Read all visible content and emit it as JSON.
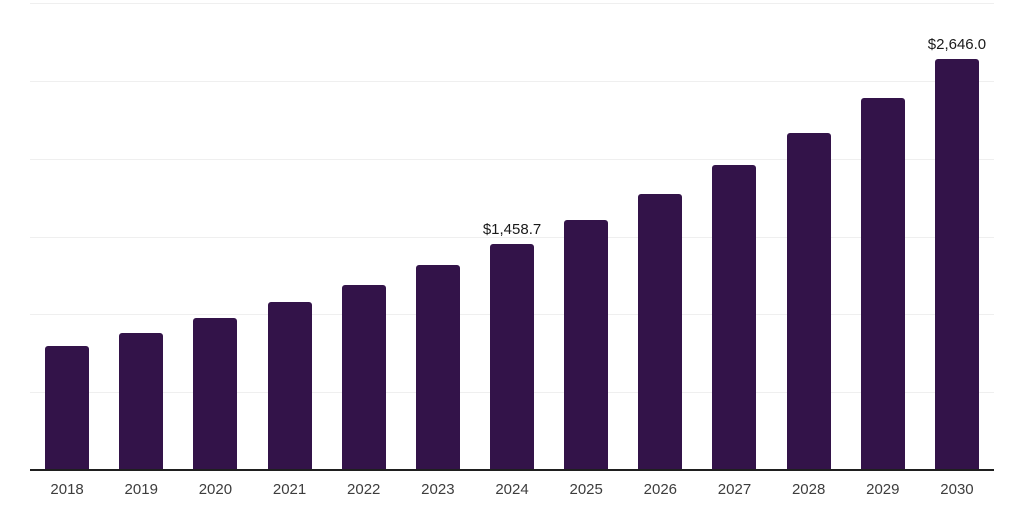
{
  "chart_data": {
    "type": "bar",
    "title": "",
    "xlabel": "",
    "ylabel": "",
    "categories": [
      "2018",
      "2019",
      "2020",
      "2021",
      "2022",
      "2023",
      "2024",
      "2025",
      "2026",
      "2027",
      "2028",
      "2029",
      "2030"
    ],
    "values": [
      804,
      888,
      981,
      1083,
      1196,
      1321,
      1458.7,
      1611,
      1779,
      1965,
      2170,
      2396,
      2646
    ],
    "value_labels": [
      {
        "category": "2024",
        "label": "$1,458.7"
      },
      {
        "category": "2030",
        "label": "$2,646.0"
      }
    ],
    "ylim": [
      0,
      3000
    ],
    "gridline_step": 500,
    "grid": "horizontal",
    "legend": "none",
    "y_axis_tick_labels": "none",
    "colors": {
      "bar": "#331349",
      "gridline": "#efefef",
      "axis_line": "#1f1f1f",
      "tick_label": "#3d3d3d",
      "value_label": "#1a1a1a",
      "background": "#ffffff"
    }
  }
}
